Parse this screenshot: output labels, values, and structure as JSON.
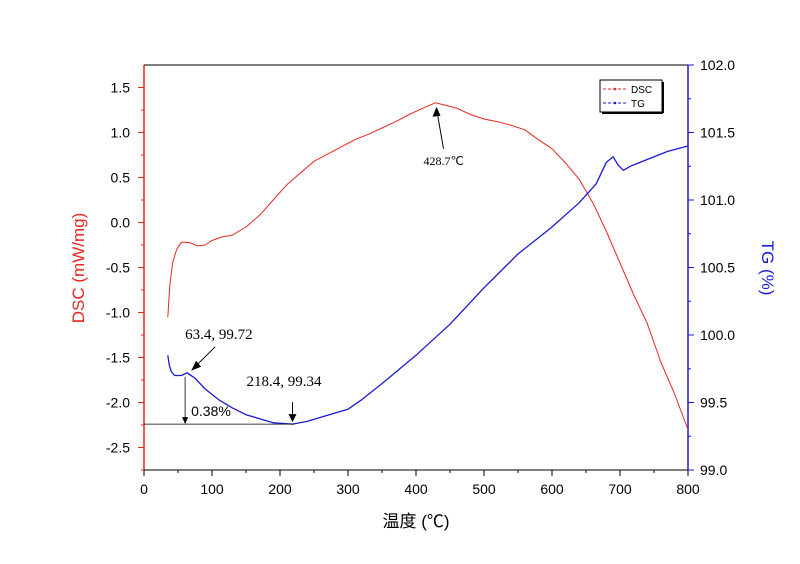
{
  "chart_data": {
    "type": "line",
    "xlabel": "温度 (℃)",
    "ylabel_left": "DSC (mW/mg)",
    "ylabel_right": "TG (%)",
    "xlim": [
      0,
      800
    ],
    "ylim_left": [
      -2.75,
      1.75
    ],
    "ylim_right": [
      99.0,
      102.0
    ],
    "x_ticks": [
      0,
      100,
      200,
      300,
      400,
      500,
      600,
      700,
      800
    ],
    "y_left_ticks": [
      "1.5",
      "1.0",
      "0.5",
      "0.0",
      "-0.5",
      "-1.0",
      "-1.5",
      "-2.0",
      "-2.5"
    ],
    "y_right_ticks": [
      "102.0",
      "101.5",
      "101.0",
      "100.5",
      "100.0",
      "99.5",
      "99.0"
    ],
    "grid": false,
    "legend_position": "top-right",
    "series": [
      {
        "name": "DSC",
        "axis": "left",
        "color": "#e8261f",
        "points": [
          [
            35,
            -1.05
          ],
          [
            38,
            -0.7
          ],
          [
            42,
            -0.45
          ],
          [
            48,
            -0.3
          ],
          [
            55,
            -0.22
          ],
          [
            63,
            -0.22
          ],
          [
            70,
            -0.23
          ],
          [
            78,
            -0.26
          ],
          [
            90,
            -0.25
          ],
          [
            100,
            -0.2
          ],
          [
            115,
            -0.16
          ],
          [
            130,
            -0.14
          ],
          [
            150,
            -0.05
          ],
          [
            170,
            0.08
          ],
          [
            190,
            0.25
          ],
          [
            210,
            0.42
          ],
          [
            230,
            0.55
          ],
          [
            250,
            0.68
          ],
          [
            270,
            0.76
          ],
          [
            290,
            0.84
          ],
          [
            310,
            0.92
          ],
          [
            330,
            0.98
          ],
          [
            350,
            1.05
          ],
          [
            370,
            1.12
          ],
          [
            390,
            1.2
          ],
          [
            410,
            1.27
          ],
          [
            428.7,
            1.33
          ],
          [
            445,
            1.3
          ],
          [
            460,
            1.27
          ],
          [
            480,
            1.2
          ],
          [
            500,
            1.15
          ],
          [
            520,
            1.12
          ],
          [
            540,
            1.08
          ],
          [
            560,
            1.03
          ],
          [
            580,
            0.92
          ],
          [
            600,
            0.82
          ],
          [
            620,
            0.66
          ],
          [
            640,
            0.48
          ],
          [
            660,
            0.22
          ],
          [
            680,
            -0.1
          ],
          [
            700,
            -0.45
          ],
          [
            720,
            -0.8
          ],
          [
            740,
            -1.12
          ],
          [
            760,
            -1.55
          ],
          [
            780,
            -1.9
          ],
          [
            800,
            -2.3
          ]
        ]
      },
      {
        "name": "TG",
        "axis": "right",
        "color": "#1a1ad6",
        "points": [
          [
            35,
            99.85
          ],
          [
            37,
            99.78
          ],
          [
            40,
            99.73
          ],
          [
            45,
            99.7
          ],
          [
            55,
            99.7
          ],
          [
            63.4,
            99.72
          ],
          [
            75,
            99.68
          ],
          [
            90,
            99.6
          ],
          [
            110,
            99.52
          ],
          [
            130,
            99.46
          ],
          [
            150,
            99.41
          ],
          [
            170,
            99.38
          ],
          [
            190,
            99.35
          ],
          [
            218.4,
            99.34
          ],
          [
            240,
            99.36
          ],
          [
            260,
            99.39
          ],
          [
            280,
            99.42
          ],
          [
            300,
            99.45
          ],
          [
            320,
            99.52
          ],
          [
            350,
            99.64
          ],
          [
            400,
            99.85
          ],
          [
            450,
            100.08
          ],
          [
            500,
            100.35
          ],
          [
            550,
            100.6
          ],
          [
            600,
            100.8
          ],
          [
            640,
            100.98
          ],
          [
            665,
            101.12
          ],
          [
            680,
            101.28
          ],
          [
            690,
            101.32
          ],
          [
            697,
            101.26
          ],
          [
            705,
            101.22
          ],
          [
            715,
            101.25
          ],
          [
            740,
            101.3
          ],
          [
            770,
            101.36
          ],
          [
            800,
            101.4
          ]
        ]
      }
    ],
    "annotations": [
      {
        "text": "428.7℃",
        "x": 428.7,
        "y": 1.33,
        "axis": "left"
      },
      {
        "text": "63.4, 99.72",
        "x": 63.4,
        "y": 99.72,
        "axis": "right"
      },
      {
        "text": "218.4, 99.34",
        "x": 218.4,
        "y": 99.34,
        "axis": "right"
      },
      {
        "text": "0.38%",
        "x": 63.4,
        "y": 99.34,
        "axis": "right"
      }
    ]
  }
}
